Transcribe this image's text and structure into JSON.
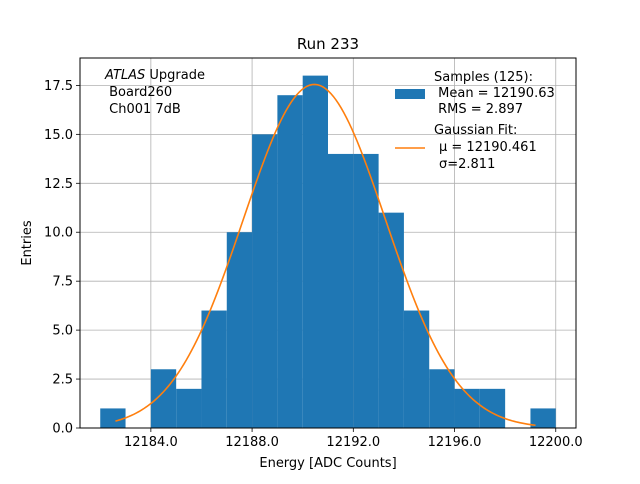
{
  "chart_data": {
    "type": "bar",
    "title": "Run 233",
    "xlabel": "Energy [ADC Counts]",
    "ylabel": "Entries",
    "xlim": [
      181.2,
      200.8
    ],
    "ylim": [
      0,
      18.9
    ],
    "x_offset": 12000,
    "grid": true,
    "x_ticks": [
      184,
      188,
      192,
      196,
      200
    ],
    "x_tick_labels": [
      "12184.0",
      "12188.0",
      "12192.0",
      "12196.0",
      "12200.0"
    ],
    "y_ticks": [
      0,
      2.5,
      5,
      7.5,
      10,
      12.5,
      15,
      17.5
    ],
    "y_tick_labels": [
      "0.0",
      "2.5",
      "5.0",
      "7.5",
      "10.0",
      "12.5",
      "15.0",
      "17.5"
    ],
    "histogram": {
      "name": "Samples (125):",
      "color": "#1f77b4",
      "bins": [
        {
          "x0": 182,
          "x1": 183,
          "count": 1
        },
        {
          "x0": 183,
          "x1": 184,
          "count": 0
        },
        {
          "x0": 184,
          "x1": 185,
          "count": 3
        },
        {
          "x0": 185,
          "x1": 186,
          "count": 2
        },
        {
          "x0": 186,
          "x1": 187,
          "count": 6
        },
        {
          "x0": 187,
          "x1": 188,
          "count": 10
        },
        {
          "x0": 188,
          "x1": 189,
          "count": 15
        },
        {
          "x0": 189,
          "x1": 190,
          "count": 17
        },
        {
          "x0": 190,
          "x1": 191,
          "count": 18
        },
        {
          "x0": 191,
          "x1": 192,
          "count": 14
        },
        {
          "x0": 192,
          "x1": 193,
          "count": 14
        },
        {
          "x0": 193,
          "x1": 194,
          "count": 11
        },
        {
          "x0": 194,
          "x1": 195,
          "count": 6
        },
        {
          "x0": 195,
          "x1": 196,
          "count": 3
        },
        {
          "x0": 196,
          "x1": 197,
          "count": 2
        },
        {
          "x0": 197,
          "x1": 198,
          "count": 2
        },
        {
          "x0": 198,
          "x1": 199,
          "count": 0
        },
        {
          "x0": 199,
          "x1": 200,
          "count": 1
        }
      ]
    },
    "fit": {
      "name": "Gaussian Fit:",
      "color": "#ff7f0e",
      "mu": 190.461,
      "sigma": 2.811,
      "amplitude": 17.55,
      "x_range": [
        182.6,
        199.2
      ]
    },
    "legend": {
      "position": "upper right",
      "hist_lines": [
        "Samples (125):",
        " Mean = 12190.63",
        " RMS = 2.897"
      ],
      "fit_lines": [
        "Gaussian Fit:",
        "μ = 12190.461",
        "σ=2.811"
      ]
    },
    "annotation": {
      "position": "upper left",
      "italic_part": "ATLAS",
      "rest_first_line": " Upgrade",
      "lines": [
        " Board260",
        " Ch001 7dB"
      ]
    }
  }
}
